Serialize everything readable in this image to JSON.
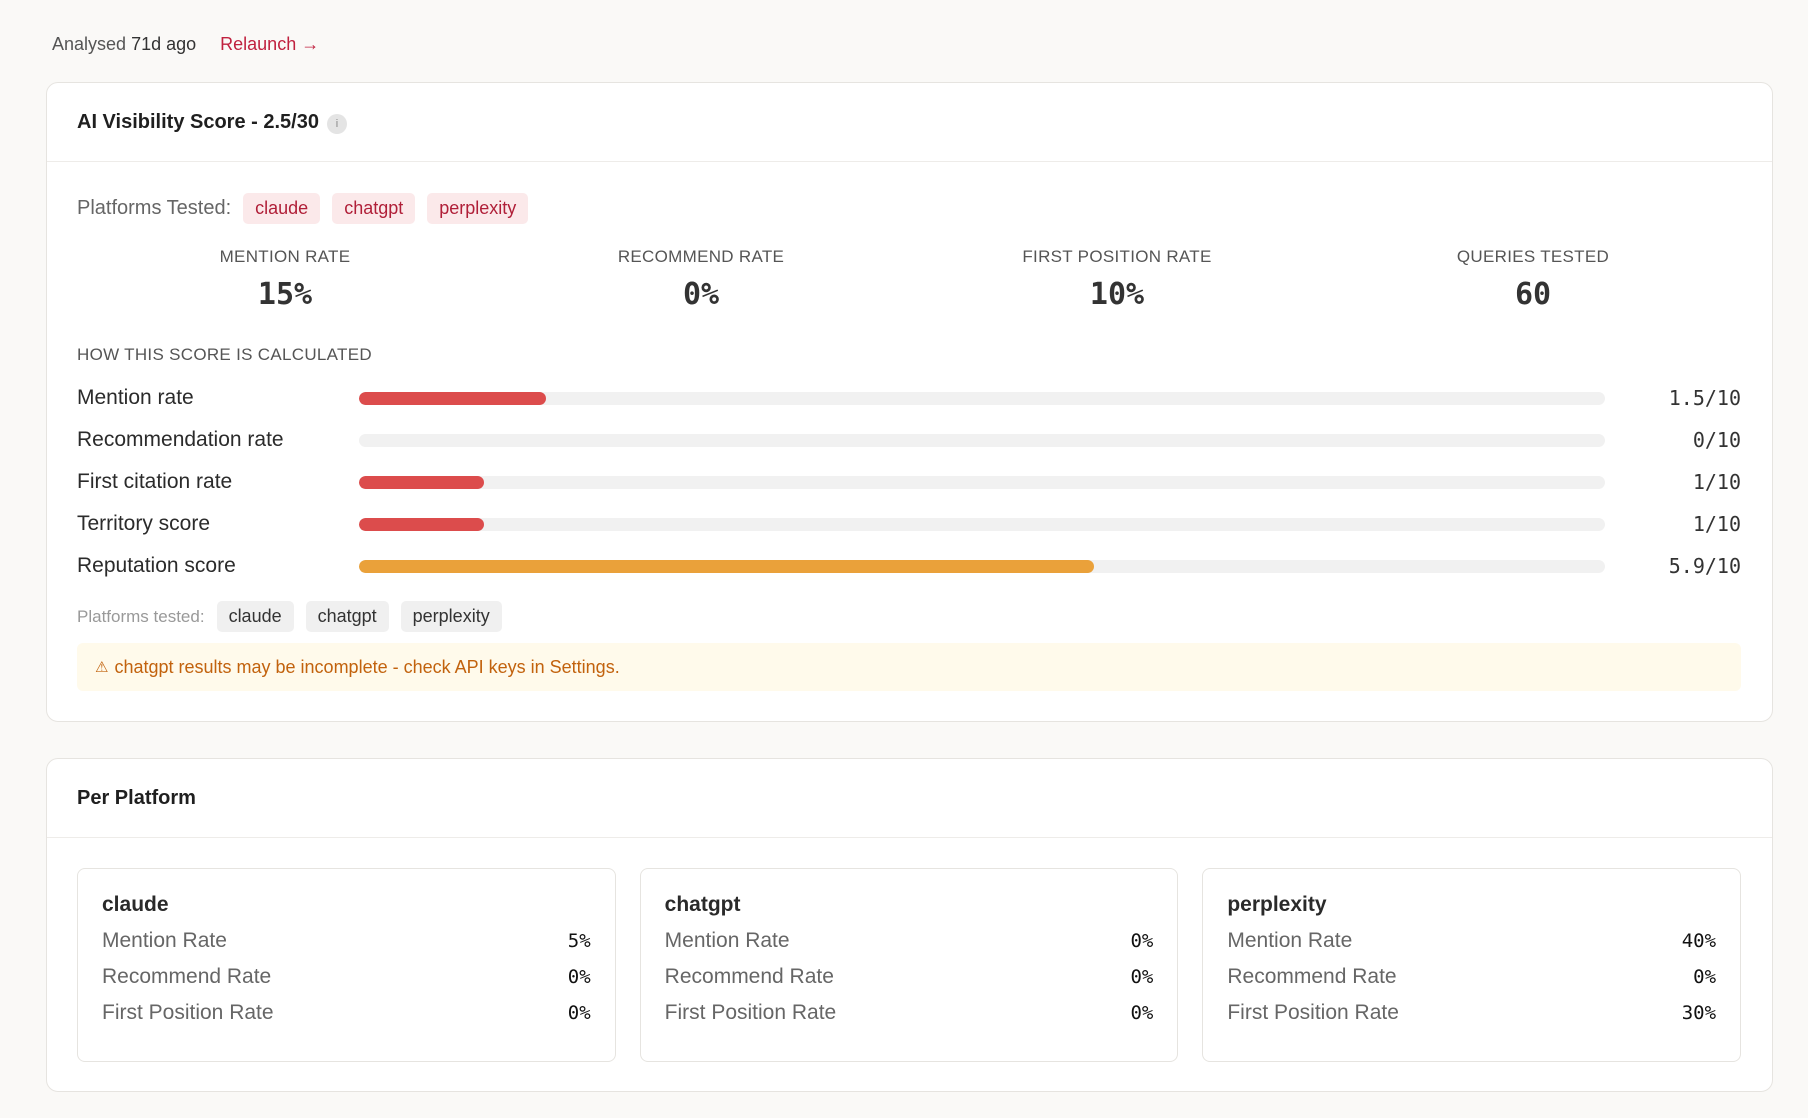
{
  "header": {
    "analysed_prefix": "Analysed",
    "analysed_time": "71d ago",
    "relaunch_label": "Relaunch →"
  },
  "score_card": {
    "title": "AI Visibility Score - 2.5/30",
    "info_icon": "i",
    "platforms_tested_label": "Platforms Tested:",
    "platforms": [
      "claude",
      "chatgpt",
      "perplexity"
    ],
    "stats": [
      {
        "label": "MENTION RATE",
        "value": "15%"
      },
      {
        "label": "RECOMMEND RATE",
        "value": "0%"
      },
      {
        "label": "FIRST POSITION RATE",
        "value": "10%"
      },
      {
        "label": "QUERIES TESTED",
        "value": "60"
      }
    ],
    "calc_title": "HOW THIS SCORE IS CALCULATED",
    "breakdown": [
      {
        "label": "Mention rate",
        "value": "1.5/10",
        "fraction": 0.15,
        "color": "#dc4c4c"
      },
      {
        "label": "Recommendation rate",
        "value": "0/10",
        "fraction": 0.0,
        "color": "#dc4c4c"
      },
      {
        "label": "First citation rate",
        "value": "1/10",
        "fraction": 0.1,
        "color": "#dc4c4c"
      },
      {
        "label": "Territory score",
        "value": "1/10",
        "fraction": 0.1,
        "color": "#dc4c4c"
      },
      {
        "label": "Reputation score",
        "value": "5.9/10",
        "fraction": 0.59,
        "color": "#eaa13a"
      }
    ],
    "platforms_tested_label_small": "Platforms tested:",
    "warning_icon": "warning-icon",
    "warning_text": "chatgpt results may be incomplete - check API keys in Settings."
  },
  "platform_card": {
    "title": "Per Platform",
    "platforms": [
      {
        "name": "claude",
        "metrics": [
          {
            "label": "Mention Rate",
            "value": "5%"
          },
          {
            "label": "Recommend Rate",
            "value": "0%"
          },
          {
            "label": "First Position Rate",
            "value": "0%"
          }
        ]
      },
      {
        "name": "chatgpt",
        "metrics": [
          {
            "label": "Mention Rate",
            "value": "0%"
          },
          {
            "label": "Recommend Rate",
            "value": "0%"
          },
          {
            "label": "First Position Rate",
            "value": "0%"
          }
        ]
      },
      {
        "name": "perplexity",
        "metrics": [
          {
            "label": "Mention Rate",
            "value": "40%"
          },
          {
            "label": "Recommend Rate",
            "value": "0%"
          },
          {
            "label": "First Position Rate",
            "value": "30%"
          }
        ]
      }
    ]
  }
}
